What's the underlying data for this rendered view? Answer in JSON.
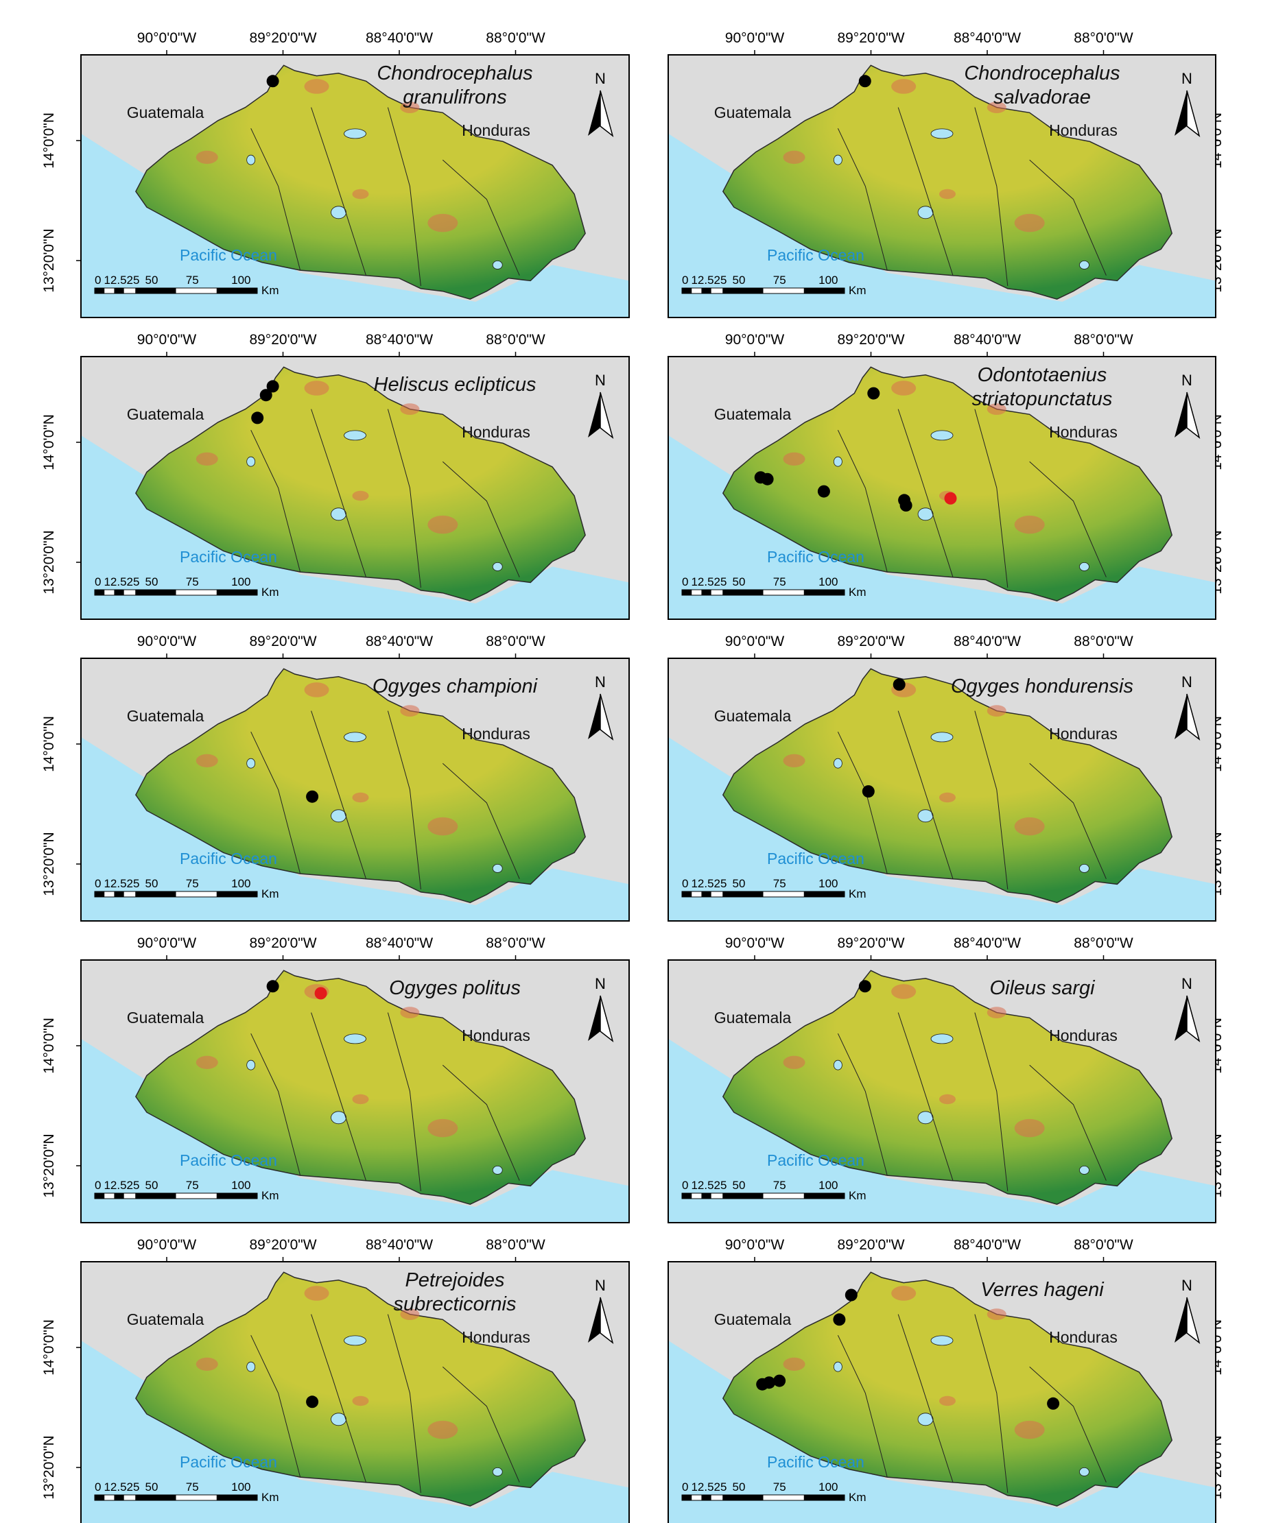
{
  "figure": {
    "lon_ticks": [
      "90°0'0\"W",
      "89°20'0\"W",
      "88°40'0\"W",
      "88°0'0\"W"
    ],
    "lat_ticks": [
      "14°0'0\"N",
      "13°20'0\"N"
    ],
    "labels": {
      "country_left": "Guatemala",
      "country_right": "Honduras",
      "ocean": "Pacific Ocean",
      "north": "N",
      "scale_ticks": [
        "0",
        "12.525",
        "50",
        "75",
        "100"
      ],
      "scale_unit": "Km"
    },
    "colors": {
      "ocean": "#aee4f7",
      "ocean_text": "#1f8fd4",
      "background": "#dcdcdc",
      "lowland": "#2e8a3a",
      "midland": "#8fb83a",
      "highland": "#c9c93a",
      "peak": "#d96d4e",
      "record_point": "#000000",
      "highlight_point": "#e41a1c"
    }
  },
  "panels": [
    {
      "species_lines": [
        "Chondrocephalus",
        "granulifrons"
      ],
      "axis_side": "left",
      "records": [
        {
          "lon": -89.43,
          "lat": 14.4
        }
      ],
      "highlights": []
    },
    {
      "species_lines": [
        "Chondrocephalus",
        "salvadorae"
      ],
      "axis_side": "right",
      "records": [
        {
          "lon": -89.4,
          "lat": 14.4
        }
      ],
      "highlights": []
    },
    {
      "species_lines": [
        "Heliscus eclipticus"
      ],
      "axis_side": "left",
      "records": [
        {
          "lon": -89.43,
          "lat": 14.38
        },
        {
          "lon": -89.47,
          "lat": 14.33
        },
        {
          "lon": -89.52,
          "lat": 14.2
        }
      ],
      "highlights": []
    },
    {
      "species_lines": [
        "Odontotaenius",
        "striatopunctatus"
      ],
      "axis_side": "right",
      "records": [
        {
          "lon": -89.35,
          "lat": 14.34
        },
        {
          "lon": -90.01,
          "lat": 13.86
        },
        {
          "lon": -89.97,
          "lat": 13.85
        },
        {
          "lon": -89.64,
          "lat": 13.78
        },
        {
          "lon": -89.17,
          "lat": 13.73
        },
        {
          "lon": -89.16,
          "lat": 13.7
        }
      ],
      "highlights": [
        {
          "lon": -88.9,
          "lat": 13.74
        }
      ]
    },
    {
      "species_lines": [
        "Ogyges championi"
      ],
      "axis_side": "left",
      "records": [
        {
          "lon": -89.2,
          "lat": 13.76
        }
      ],
      "highlights": []
    },
    {
      "species_lines": [
        "Ogyges hondurensis"
      ],
      "axis_side": "right",
      "records": [
        {
          "lon": -89.2,
          "lat": 14.4
        },
        {
          "lon": -89.38,
          "lat": 13.79
        }
      ],
      "highlights": []
    },
    {
      "species_lines": [
        "Ogyges politus"
      ],
      "axis_side": "left",
      "records": [
        {
          "lon": -89.43,
          "lat": 14.4
        }
      ],
      "highlights": [
        {
          "lon": -89.15,
          "lat": 14.36
        }
      ]
    },
    {
      "species_lines": [
        "Oileus sargi"
      ],
      "axis_side": "right",
      "records": [
        {
          "lon": -89.4,
          "lat": 14.4
        }
      ],
      "highlights": []
    },
    {
      "species_lines": [
        "Petrejoides",
        "subrecticornis"
      ],
      "axis_side": "left",
      "records": [
        {
          "lon": -89.2,
          "lat": 13.75
        }
      ],
      "highlights": []
    },
    {
      "species_lines": [
        "Verres hageni"
      ],
      "axis_side": "right",
      "records": [
        {
          "lon": -89.48,
          "lat": 14.36
        },
        {
          "lon": -89.55,
          "lat": 14.22
        },
        {
          "lon": -90.0,
          "lat": 13.85
        },
        {
          "lon": -89.96,
          "lat": 13.86
        },
        {
          "lon": -89.9,
          "lat": 13.87
        },
        {
          "lon": -88.3,
          "lat": 13.74
        }
      ],
      "highlights": []
    }
  ]
}
